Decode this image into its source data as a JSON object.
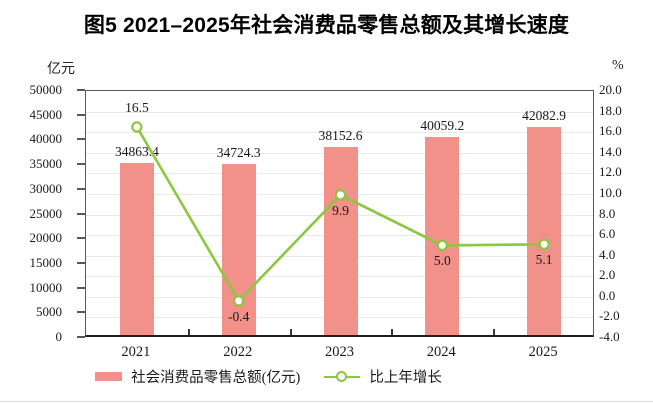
{
  "figure": {
    "title": "图5 2021–2025年社会消费品零售总额及其增长速度",
    "left_unit": "亿元",
    "right_unit": "%"
  },
  "chart_data": {
    "type": "bar+line combo",
    "categories": [
      "2021",
      "2022",
      "2023",
      "2024",
      "2025"
    ],
    "series": [
      {
        "name": "社会消费品零售总额(亿元)",
        "type": "bar",
        "axis": "left",
        "color": "#f1918a",
        "values": [
          34863.4,
          34724.3,
          38152.6,
          40059.2,
          42082.9
        ],
        "labels": [
          "34863.4",
          "34724.3",
          "38152.6",
          "40059.2",
          "42082.9"
        ]
      },
      {
        "name": "比上年增长",
        "type": "line",
        "axis": "right",
        "color": "#8dc63f",
        "marker": "circle-open",
        "values": [
          16.5,
          -0.4,
          9.9,
          5.0,
          5.1
        ],
        "labels": [
          "16.5",
          "-0.4",
          "9.9",
          "5.0",
          "5.1"
        ],
        "label_positions": [
          "above",
          "below",
          "below",
          "below",
          "below"
        ]
      }
    ],
    "left_axis": {
      "unit": "亿元",
      "min": 0,
      "max": 50000,
      "step": 5000,
      "tick_labels": [
        "0",
        "5000",
        "10000",
        "15000",
        "20000",
        "25000",
        "30000",
        "35000",
        "40000",
        "45000",
        "50000"
      ]
    },
    "right_axis": {
      "unit": "%",
      "min": -4,
      "max": 20,
      "step": 2,
      "decimals": 1,
      "tick_labels": [
        "-4.0",
        "-2.0",
        "0.0",
        "2.0",
        "4.0",
        "6.0",
        "8.0",
        "10.0",
        "12.0",
        "14.0",
        "16.0",
        "18.0",
        "20.0"
      ]
    },
    "grid": "horizontal gridlines at every 2% of right axis",
    "legend_position": "bottom"
  }
}
